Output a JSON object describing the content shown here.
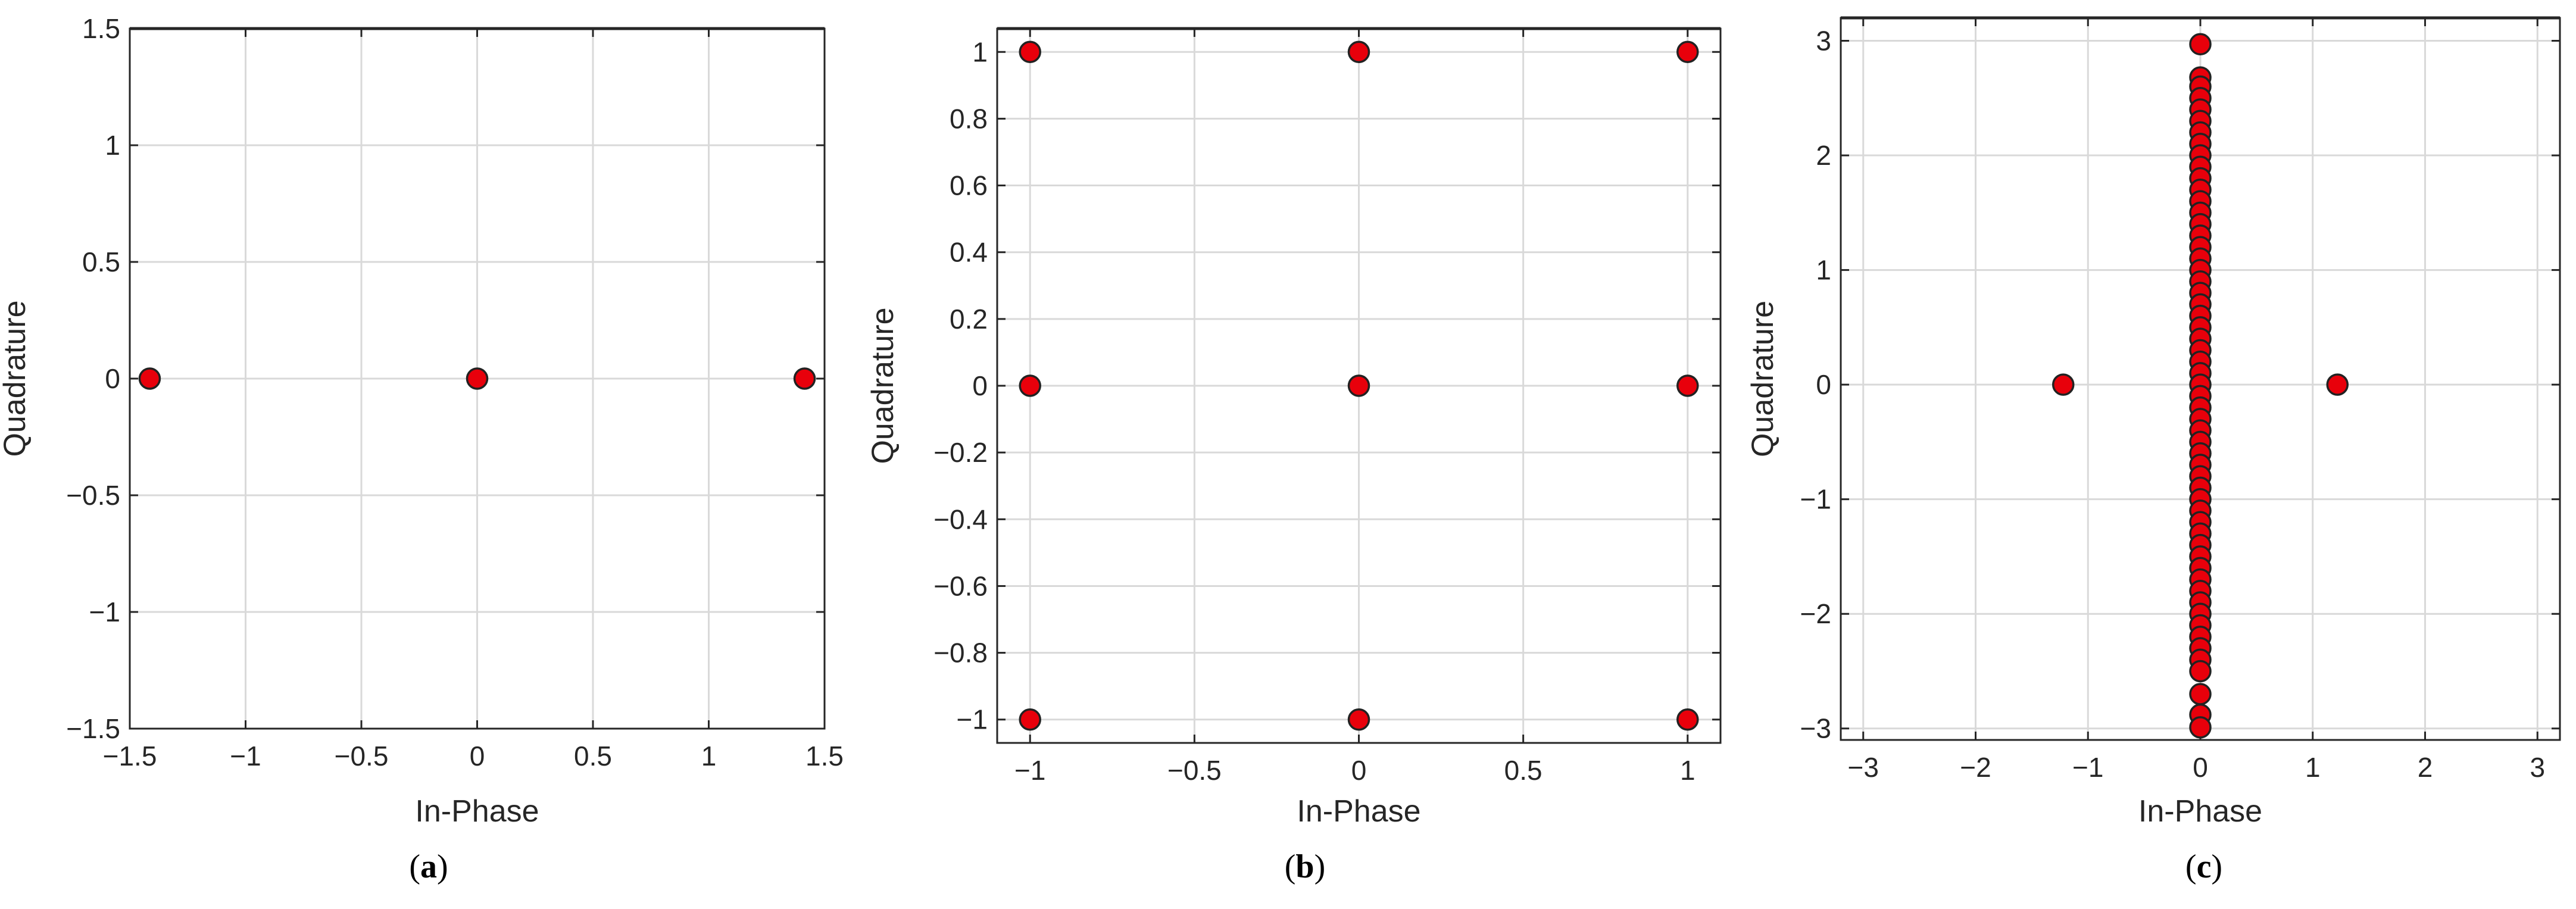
{
  "chart_data": [
    {
      "type": "scatter",
      "panel": "(a)",
      "caption": {
        "open": "(",
        "letter": "a",
        "close": ")"
      },
      "xlabel": "In-Phase",
      "ylabel": "Quadrature",
      "xlim": [
        -1.5,
        1.5
      ],
      "ylim": [
        -1.5,
        1.5
      ],
      "xticks": [
        -1.5,
        -1,
        -0.5,
        0,
        0.5,
        1,
        1.5
      ],
      "xtick_labels": [
        "−1.5",
        "−1",
        "−0.5",
        "0",
        "0.5",
        "1",
        "1.5"
      ],
      "yticks": [
        -1.5,
        -1,
        -0.5,
        0,
        0.5,
        1,
        1.5
      ],
      "ytick_labels": [
        "−1.5",
        "−1",
        "−0.5",
        "0",
        "0.5",
        "1",
        "1.5"
      ],
      "grid": true,
      "marker_color": "#e8000b",
      "points": [
        {
          "x": -1.414,
          "y": 0
        },
        {
          "x": 0,
          "y": 0
        },
        {
          "x": 1.414,
          "y": 0
        }
      ]
    },
    {
      "type": "scatter",
      "panel": "(b)",
      "caption": {
        "open": "(",
        "letter": "b",
        "close": ")"
      },
      "xlabel": "In-Phase",
      "ylabel": "Quadrature",
      "xlim": [
        -1.1,
        1.1
      ],
      "ylim": [
        -1.07,
        1.07
      ],
      "xticks": [
        -1,
        -0.5,
        0,
        0.5,
        1
      ],
      "xtick_labels": [
        "−1",
        "−0.5",
        "0",
        "0.5",
        "1"
      ],
      "yticks": [
        -1,
        -0.8,
        -0.6,
        -0.4,
        -0.2,
        0,
        0.2,
        0.4,
        0.6,
        0.8,
        1
      ],
      "ytick_labels": [
        "−1",
        "−0.8",
        "−0.6",
        "−0.4",
        "−0.2",
        "0",
        "0.2",
        "0.4",
        "0.6",
        "0.8",
        "1"
      ],
      "grid": true,
      "marker_color": "#e8000b",
      "points": [
        {
          "x": -1,
          "y": 1
        },
        {
          "x": 0,
          "y": 1
        },
        {
          "x": 1,
          "y": 1
        },
        {
          "x": -1,
          "y": 0
        },
        {
          "x": 0,
          "y": 0
        },
        {
          "x": 1,
          "y": 0
        },
        {
          "x": -1,
          "y": -1
        },
        {
          "x": 0,
          "y": -1
        },
        {
          "x": 1,
          "y": -1
        }
      ]
    },
    {
      "type": "scatter",
      "panel": "(c)",
      "caption": {
        "open": "(",
        "letter": "c",
        "close": ")"
      },
      "xlabel": "In-Phase",
      "ylabel": "Quadrature",
      "xlim": [
        -3.2,
        3.2
      ],
      "ylim": [
        -3.1,
        3.2
      ],
      "xticks": [
        -3,
        -2,
        -1,
        0,
        1,
        2,
        3
      ],
      "xtick_labels": [
        "−3",
        "−2",
        "−1",
        "0",
        "1",
        "2",
        "3"
      ],
      "yticks": [
        -3,
        -2,
        -1,
        0,
        1,
        2,
        3
      ],
      "ytick_labels": [
        "−3",
        "−2",
        "−1",
        "0",
        "1",
        "2",
        "3"
      ],
      "grid": true,
      "marker_color": "#e8000b",
      "points": [
        {
          "x": -1.22,
          "y": 0
        },
        {
          "x": 1.22,
          "y": 0
        },
        {
          "x": 0,
          "y": 2.97
        },
        {
          "x": 0,
          "y": 2.68
        },
        {
          "x": 0,
          "y": 2.6
        },
        {
          "x": 0,
          "y": 2.5
        },
        {
          "x": 0,
          "y": 2.4
        },
        {
          "x": 0,
          "y": 2.3
        },
        {
          "x": 0,
          "y": 2.2
        },
        {
          "x": 0,
          "y": 2.1
        },
        {
          "x": 0,
          "y": 2.0
        },
        {
          "x": 0,
          "y": 1.9
        },
        {
          "x": 0,
          "y": 1.8
        },
        {
          "x": 0,
          "y": 1.7
        },
        {
          "x": 0,
          "y": 1.6
        },
        {
          "x": 0,
          "y": 1.5
        },
        {
          "x": 0,
          "y": 1.4
        },
        {
          "x": 0,
          "y": 1.3
        },
        {
          "x": 0,
          "y": 1.2
        },
        {
          "x": 0,
          "y": 1.1
        },
        {
          "x": 0,
          "y": 1.0
        },
        {
          "x": 0,
          "y": 0.9
        },
        {
          "x": 0,
          "y": 0.8
        },
        {
          "x": 0,
          "y": 0.7
        },
        {
          "x": 0,
          "y": 0.6
        },
        {
          "x": 0,
          "y": 0.5
        },
        {
          "x": 0,
          "y": 0.4
        },
        {
          "x": 0,
          "y": 0.3
        },
        {
          "x": 0,
          "y": 0.2
        },
        {
          "x": 0,
          "y": 0.1
        },
        {
          "x": 0,
          "y": 0.0
        },
        {
          "x": 0,
          "y": -0.1
        },
        {
          "x": 0,
          "y": -0.2
        },
        {
          "x": 0,
          "y": -0.3
        },
        {
          "x": 0,
          "y": -0.4
        },
        {
          "x": 0,
          "y": -0.5
        },
        {
          "x": 0,
          "y": -0.6
        },
        {
          "x": 0,
          "y": -0.7
        },
        {
          "x": 0,
          "y": -0.8
        },
        {
          "x": 0,
          "y": -0.9
        },
        {
          "x": 0,
          "y": -1.0
        },
        {
          "x": 0,
          "y": -1.1
        },
        {
          "x": 0,
          "y": -1.2
        },
        {
          "x": 0,
          "y": -1.3
        },
        {
          "x": 0,
          "y": -1.4
        },
        {
          "x": 0,
          "y": -1.5
        },
        {
          "x": 0,
          "y": -1.6
        },
        {
          "x": 0,
          "y": -1.7
        },
        {
          "x": 0,
          "y": -1.8
        },
        {
          "x": 0,
          "y": -1.9
        },
        {
          "x": 0,
          "y": -2.0
        },
        {
          "x": 0,
          "y": -2.1
        },
        {
          "x": 0,
          "y": -2.2
        },
        {
          "x": 0,
          "y": -2.3
        },
        {
          "x": 0,
          "y": -2.4
        },
        {
          "x": 0,
          "y": -2.5
        },
        {
          "x": 0,
          "y": -2.7
        },
        {
          "x": 0,
          "y": -2.88
        },
        {
          "x": 0,
          "y": -2.99
        }
      ]
    }
  ]
}
